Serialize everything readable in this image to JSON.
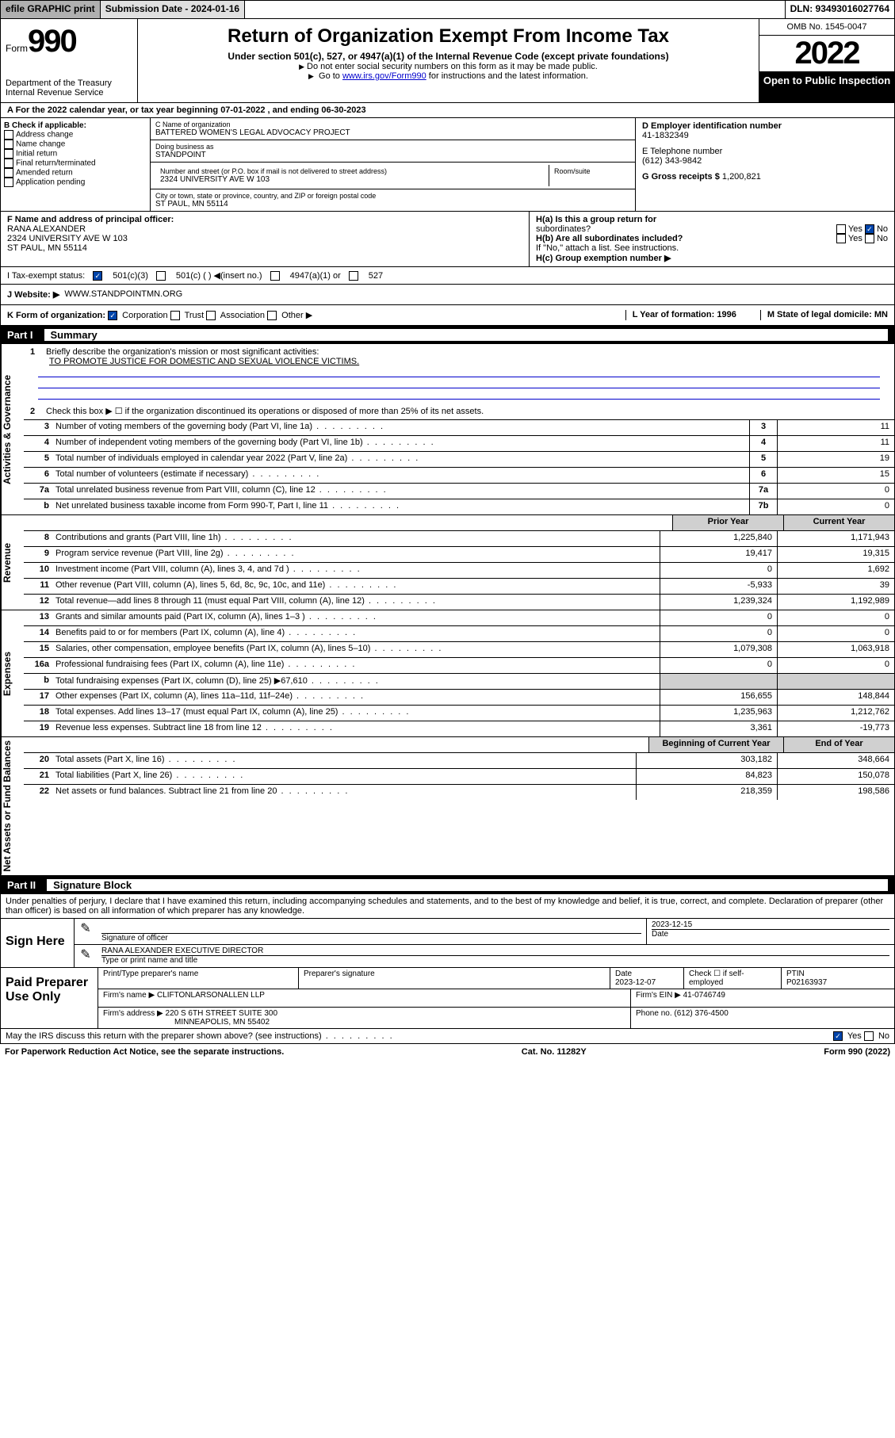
{
  "top": {
    "efile": "efile GRAPHIC print",
    "submission": "Submission Date - 2024-01-16",
    "dln": "DLN: 93493016027764"
  },
  "header": {
    "form_label": "Form",
    "form_num": "990",
    "dept": "Department of the Treasury Internal Revenue Service",
    "title": "Return of Organization Exempt From Income Tax",
    "sub": "Under section 501(c), 527, or 4947(a)(1) of the Internal Revenue Code (except private foundations)",
    "warn1": "Do not enter social security numbers on this form as it may be made public.",
    "warn2_pre": "Go to ",
    "warn2_link": "www.irs.gov/Form990",
    "warn2_post": " for instructions and the latest information.",
    "omb": "OMB No. 1545-0047",
    "year": "2022",
    "open": "Open to Public Inspection"
  },
  "line_a": "A For the 2022 calendar year, or tax year beginning 07-01-2022   , and ending 06-30-2023",
  "col_b": {
    "label": "B Check if applicable:",
    "items": [
      "Address change",
      "Name change",
      "Initial return",
      "Final return/terminated",
      "Amended return",
      "Application pending"
    ]
  },
  "org": {
    "c_label": "C Name of organization",
    "name": "BATTERED WOMEN'S LEGAL ADVOCACY PROJECT",
    "dba_label": "Doing business as",
    "dba": "STANDPOINT",
    "addr_label": "Number and street (or P.O. box if mail is not delivered to street address)",
    "room_label": "Room/suite",
    "addr": "2324 UNIVERSITY AVE W 103",
    "city_label": "City or town, state or province, country, and ZIP or foreign postal code",
    "city": "ST PAUL, MN  55114"
  },
  "right": {
    "d_label": "D Employer identification number",
    "ein": "41-1832349",
    "e_label": "E Telephone number",
    "phone": "(612) 343-9842",
    "g_label": "G Gross receipts $",
    "gross": "1,200,821"
  },
  "block_f": {
    "f_label": "F Name and address of principal officer:",
    "officer": "RANA ALEXANDER",
    "addr": "2324 UNIVERSITY AVE W 103",
    "city": "ST PAUL, MN  55114",
    "ha": "H(a)  Is this a group return for",
    "ha2": "subordinates?",
    "hb": "H(b)  Are all subordinates included?",
    "hb_note": "If \"No,\" attach a list. See instructions.",
    "hc": "H(c)  Group exemption number ▶",
    "yes": "Yes",
    "no": "No"
  },
  "row_i": {
    "label": "I     Tax-exempt status:",
    "opt1": "501(c)(3)",
    "opt2": "501(c) (  ) ◀(insert no.)",
    "opt3": "4947(a)(1) or",
    "opt4": "527"
  },
  "row_j": {
    "label": "J    Website: ▶",
    "val": "WWW.STANDPOINTMN.ORG"
  },
  "row_k": {
    "label": "K Form of organization:",
    "corp": "Corporation",
    "trust": "Trust",
    "assoc": "Association",
    "other": "Other ▶",
    "l": "L Year of formation: 1996",
    "m": "M State of legal domicile: MN"
  },
  "parts": {
    "p1": "Part I",
    "p1_title": "Summary",
    "p2": "Part II",
    "p2_title": "Signature Block"
  },
  "summary": {
    "section_labels": {
      "ag": "Activities & Governance",
      "rev": "Revenue",
      "exp": "Expenses",
      "nab": "Net Assets or Fund Balances"
    },
    "q1": "Briefly describe the organization's mission or most significant activities:",
    "mission": "TO PROMOTE JUSTICE FOR DOMESTIC AND SEXUAL VIOLENCE VICTIMS.",
    "q2": "Check this box ▶ ☐  if the organization discontinued its operations or disposed of more than 25% of its net assets.",
    "lines": [
      {
        "n": "3",
        "d": "Number of voting members of the governing body (Part VI, line 1a)",
        "b": "3",
        "v": "11"
      },
      {
        "n": "4",
        "d": "Number of independent voting members of the governing body (Part VI, line 1b)",
        "b": "4",
        "v": "11"
      },
      {
        "n": "5",
        "d": "Total number of individuals employed in calendar year 2022 (Part V, line 2a)",
        "b": "5",
        "v": "19"
      },
      {
        "n": "6",
        "d": "Total number of volunteers (estimate if necessary)",
        "b": "6",
        "v": "15"
      },
      {
        "n": "7a",
        "d": "Total unrelated business revenue from Part VIII, column (C), line 12",
        "b": "7a",
        "v": "0"
      },
      {
        "n": "b",
        "d": "Net unrelated business taxable income from Form 990-T, Part I, line 11",
        "b": "7b",
        "v": "0"
      }
    ],
    "year_hdr_prior": "Prior Year",
    "year_hdr_curr": "Current Year",
    "rev_lines": [
      {
        "n": "8",
        "d": "Contributions and grants (Part VIII, line 1h)",
        "p": "1,225,840",
        "c": "1,171,943"
      },
      {
        "n": "9",
        "d": "Program service revenue (Part VIII, line 2g)",
        "p": "19,417",
        "c": "19,315"
      },
      {
        "n": "10",
        "d": "Investment income (Part VIII, column (A), lines 3, 4, and 7d )",
        "p": "0",
        "c": "1,692"
      },
      {
        "n": "11",
        "d": "Other revenue (Part VIII, column (A), lines 5, 6d, 8c, 9c, 10c, and 11e)",
        "p": "-5,933",
        "c": "39"
      },
      {
        "n": "12",
        "d": "Total revenue—add lines 8 through 11 (must equal Part VIII, column (A), line 12)",
        "p": "1,239,324",
        "c": "1,192,989"
      }
    ],
    "exp_lines": [
      {
        "n": "13",
        "d": "Grants and similar amounts paid (Part IX, column (A), lines 1–3 )",
        "p": "0",
        "c": "0"
      },
      {
        "n": "14",
        "d": "Benefits paid to or for members (Part IX, column (A), line 4)",
        "p": "0",
        "c": "0"
      },
      {
        "n": "15",
        "d": "Salaries, other compensation, employee benefits (Part IX, column (A), lines 5–10)",
        "p": "1,079,308",
        "c": "1,063,918"
      },
      {
        "n": "16a",
        "d": "Professional fundraising fees (Part IX, column (A), line 11e)",
        "p": "0",
        "c": "0"
      },
      {
        "n": "b",
        "d": "Total fundraising expenses (Part IX, column (D), line 25) ▶67,610",
        "p": "",
        "c": "",
        "shade": true
      },
      {
        "n": "17",
        "d": "Other expenses (Part IX, column (A), lines 11a–11d, 11f–24e)",
        "p": "156,655",
        "c": "148,844"
      },
      {
        "n": "18",
        "d": "Total expenses. Add lines 13–17 (must equal Part IX, column (A), line 25)",
        "p": "1,235,963",
        "c": "1,212,762"
      },
      {
        "n": "19",
        "d": "Revenue less expenses. Subtract line 18 from line 12",
        "p": "3,361",
        "c": "-19,773"
      }
    ],
    "bal_hdr_begin": "Beginning of Current Year",
    "bal_hdr_end": "End of Year",
    "bal_lines": [
      {
        "n": "20",
        "d": "Total assets (Part X, line 16)",
        "p": "303,182",
        "c": "348,664"
      },
      {
        "n": "21",
        "d": "Total liabilities (Part X, line 26)",
        "p": "84,823",
        "c": "150,078"
      },
      {
        "n": "22",
        "d": "Net assets or fund balances. Subtract line 21 from line 20",
        "p": "218,359",
        "c": "198,586"
      }
    ]
  },
  "sig": {
    "note": "Under penalties of perjury, I declare that I have examined this return, including accompanying schedules and statements, and to the best of my knowledge and belief, it is true, correct, and complete. Declaration of preparer (other than officer) is based on all information of which preparer has any knowledge.",
    "sign_here": "Sign Here",
    "sig_officer": "Signature of officer",
    "date": "Date",
    "date_val": "2023-12-15",
    "name_title": "RANA ALEXANDER  EXECUTIVE DIRECTOR",
    "name_label": "Type or print name and title"
  },
  "prep": {
    "label": "Paid Preparer Use Only",
    "h1": "Print/Type preparer's name",
    "h2": "Preparer's signature",
    "h3": "Date",
    "h3_val": "2023-12-07",
    "h4": "Check ☐ if self-employed",
    "h5": "PTIN",
    "ptin": "P02163937",
    "firm_name_label": "Firm's name      ▶",
    "firm_name": "CLIFTONLARSONALLEN LLP",
    "firm_ein_label": "Firm's EIN ▶",
    "firm_ein": "41-0746749",
    "firm_addr_label": "Firm's address ▶",
    "firm_addr": "220 S 6TH STREET SUITE 300",
    "firm_city": "MINNEAPOLIS, MN  55402",
    "phone_label": "Phone no.",
    "phone": "(612) 376-4500"
  },
  "may_irs": "May the IRS discuss this return with the preparer shown above? (see instructions)",
  "footer": {
    "pra": "For Paperwork Reduction Act Notice, see the separate instructions.",
    "cat": "Cat. No. 11282Y",
    "form": "Form 990 (2022)"
  }
}
